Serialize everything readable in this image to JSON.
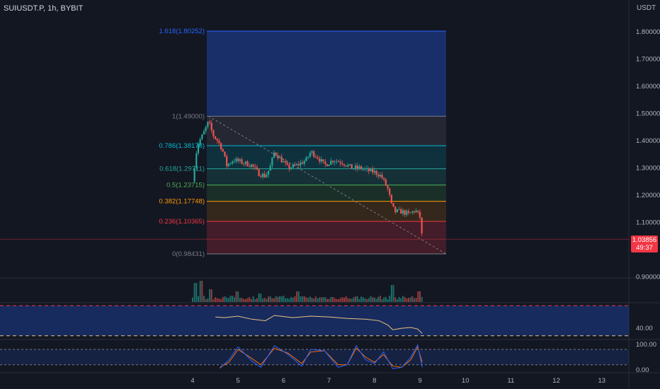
{
  "header": {
    "symbol": "SUIUSDT.P, 1h, BYBIT",
    "currency": "USDT"
  },
  "current_price": {
    "value": "1.03856",
    "countdown": "49:37",
    "color": "#f23645"
  },
  "colors": {
    "background": "#131722",
    "up": "#26a69a",
    "down": "#ef5350",
    "rsi_line": "#e7c37e",
    "stoch_k": "#2962ff",
    "stoch_d": "#ff6d00"
  },
  "chart_data": [
    {
      "type": "candlestick",
      "y_axis": {
        "ylim": [
          0.88,
          1.86
        ],
        "ticks": [
          "1.80000",
          "1.70000",
          "1.60000",
          "1.50000",
          "1.40000",
          "1.30000",
          "1.20000",
          "1.10000",
          "0.90000"
        ]
      },
      "x_axis": {
        "ticks": [
          "4",
          "5",
          "6",
          "7",
          "8",
          "9",
          "10",
          "11",
          "12",
          "13"
        ]
      },
      "fibonacci": [
        {
          "level": "1.618",
          "price": "1.80252",
          "label": "1.618(1.80252)",
          "color": "#2962ff"
        },
        {
          "level": "1",
          "price": "1.49000",
          "label": "1(1.49000)",
          "color": "#787b86"
        },
        {
          "level": "0.786",
          "price": "1.38178",
          "label": "0.786(1.38178)",
          "color": "#00bcd4"
        },
        {
          "level": "0.618",
          "price": "1.29711",
          "label": "0.618(1.29711)",
          "color": "#26a69a"
        },
        {
          "level": "0.5",
          "price": "1.23715",
          "label": "0.5(1.23715)",
          "color": "#4caf50"
        },
        {
          "level": "0.382",
          "price": "1.17748",
          "label": "0.382(1.17748)",
          "color": "#ff9800"
        },
        {
          "level": "0.236",
          "price": "1.10365",
          "label": "0.236(1.10365)",
          "color": "#f23645"
        },
        {
          "level": "0",
          "price": "0.98431",
          "label": "0(0.98431)",
          "color": "#787b86"
        }
      ],
      "price_path": [
        [
          4.0,
          1.25
        ],
        [
          4.05,
          1.32
        ],
        [
          4.1,
          1.38
        ],
        [
          4.15,
          1.4
        ],
        [
          4.22,
          1.42
        ],
        [
          4.3,
          1.45
        ],
        [
          4.35,
          1.47
        ],
        [
          4.45,
          1.42
        ],
        [
          4.55,
          1.4
        ],
        [
          4.65,
          1.37
        ],
        [
          4.75,
          1.31
        ],
        [
          4.9,
          1.33
        ],
        [
          5.1,
          1.32
        ],
        [
          5.3,
          1.31
        ],
        [
          5.45,
          1.28
        ],
        [
          5.6,
          1.27
        ],
        [
          5.7,
          1.3
        ],
        [
          5.8,
          1.36
        ],
        [
          5.95,
          1.33
        ],
        [
          6.1,
          1.3
        ],
        [
          6.3,
          1.31
        ],
        [
          6.5,
          1.33
        ],
        [
          6.6,
          1.36
        ],
        [
          6.75,
          1.34
        ],
        [
          6.9,
          1.31
        ],
        [
          7.1,
          1.33
        ],
        [
          7.3,
          1.32
        ],
        [
          7.5,
          1.3
        ],
        [
          7.7,
          1.3
        ],
        [
          7.85,
          1.29
        ],
        [
          8.0,
          1.285
        ],
        [
          8.15,
          1.27
        ],
        [
          8.3,
          1.22
        ],
        [
          8.38,
          1.16
        ],
        [
          8.45,
          1.14
        ],
        [
          8.6,
          1.14
        ],
        [
          8.75,
          1.13
        ],
        [
          8.9,
          1.145
        ],
        [
          9.0,
          1.12
        ],
        [
          9.05,
          1.04
        ]
      ]
    },
    {
      "type": "bar",
      "name": "volume",
      "x_range": [
        4.0,
        9.05
      ],
      "spikes": [
        [
          4.05,
          0.9
        ],
        [
          4.2,
          1.0
        ],
        [
          4.4,
          0.6
        ],
        [
          5.0,
          0.5
        ],
        [
          5.5,
          0.4
        ],
        [
          6.3,
          0.5
        ],
        [
          8.4,
          0.8
        ],
        [
          9.0,
          0.5
        ]
      ]
    },
    {
      "type": "line",
      "name": "rsi",
      "y_axis": {
        "ticks": [
          "40.00"
        ]
      },
      "values": [
        [
          4.5,
          55
        ],
        [
          4.7,
          54
        ],
        [
          5.0,
          56
        ],
        [
          5.3,
          52
        ],
        [
          5.6,
          50
        ],
        [
          5.8,
          57
        ],
        [
          6.2,
          54
        ],
        [
          6.6,
          56
        ],
        [
          7.0,
          55
        ],
        [
          7.4,
          53
        ],
        [
          7.8,
          52
        ],
        [
          8.1,
          50
        ],
        [
          8.3,
          44
        ],
        [
          8.4,
          38
        ],
        [
          8.6,
          40
        ],
        [
          8.8,
          41
        ],
        [
          8.95,
          39
        ],
        [
          9.05,
          33
        ]
      ]
    },
    {
      "type": "line",
      "name": "stochastic",
      "y_axis": {
        "ticks": [
          "100.00",
          "0.00"
        ]
      },
      "k": [
        [
          4.6,
          5
        ],
        [
          4.8,
          40
        ],
        [
          5.0,
          90
        ],
        [
          5.3,
          35
        ],
        [
          5.5,
          10
        ],
        [
          5.8,
          95
        ],
        [
          6.1,
          60
        ],
        [
          6.4,
          15
        ],
        [
          6.6,
          80
        ],
        [
          6.9,
          75
        ],
        [
          7.2,
          10
        ],
        [
          7.4,
          20
        ],
        [
          7.6,
          95
        ],
        [
          7.8,
          40
        ],
        [
          8.0,
          25
        ],
        [
          8.2,
          70
        ],
        [
          8.4,
          5
        ],
        [
          8.6,
          10
        ],
        [
          8.8,
          50
        ],
        [
          8.95,
          98
        ],
        [
          9.05,
          10
        ]
      ],
      "d": [
        [
          4.6,
          10
        ],
        [
          4.8,
          30
        ],
        [
          5.0,
          80
        ],
        [
          5.3,
          45
        ],
        [
          5.5,
          20
        ],
        [
          5.8,
          85
        ],
        [
          6.1,
          65
        ],
        [
          6.4,
          25
        ],
        [
          6.6,
          70
        ],
        [
          6.9,
          75
        ],
        [
          7.2,
          20
        ],
        [
          7.4,
          20
        ],
        [
          7.6,
          85
        ],
        [
          7.8,
          50
        ],
        [
          8.0,
          30
        ],
        [
          8.2,
          60
        ],
        [
          8.4,
          15
        ],
        [
          8.6,
          10
        ],
        [
          8.8,
          40
        ],
        [
          8.95,
          90
        ],
        [
          9.05,
          30
        ]
      ]
    }
  ]
}
